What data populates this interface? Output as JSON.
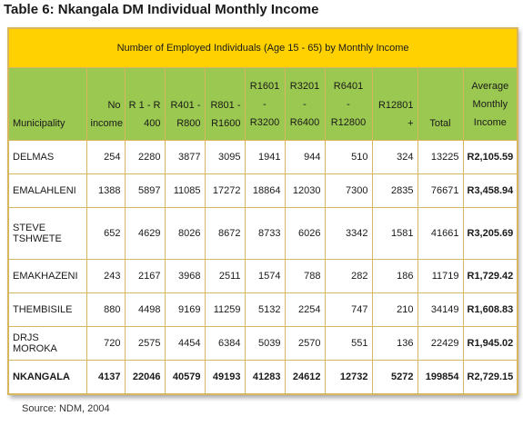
{
  "title": "Table 6: Nkangala DM Individual Monthly Income",
  "banner": "Number of Employed Individuals (Age 15 - 65) by Monthly Income",
  "headers": [
    [
      "Municipality"
    ],
    [
      "No",
      "income"
    ],
    [
      "R 1 - R",
      "400"
    ],
    [
      "R401 -",
      "R800"
    ],
    [
      "R801 -",
      "R1600"
    ],
    [
      "R1601",
      "-",
      "R3200"
    ],
    [
      "R3201",
      "-",
      "R6400"
    ],
    [
      "R6401",
      "-",
      "R12800"
    ],
    [
      "R12801",
      "+"
    ],
    [
      "Total"
    ],
    [
      "Average",
      "Monthly",
      "Income"
    ]
  ],
  "rows": [
    [
      "DELMAS",
      "254",
      "2280",
      "3877",
      "3095",
      "1941",
      "944",
      "510",
      "324",
      "13225",
      "R2,105.59"
    ],
    [
      "EMALAHLENI",
      "1388",
      "5897",
      "11085",
      "17272",
      "18864",
      "12030",
      "7300",
      "2835",
      "76671",
      "R3,458.94"
    ],
    [
      "STEVE TSHWETE",
      "652",
      "4629",
      "8026",
      "8672",
      "8733",
      "6026",
      "3342",
      "1581",
      "41661",
      "R3,205.69"
    ],
    [
      "EMAKHAZENI",
      "243",
      "2167",
      "3968",
      "2511",
      "1574",
      "788",
      "282",
      "186",
      "11719",
      "R1,729.42"
    ],
    [
      "THEMBISILE",
      "880",
      "4498",
      "9169",
      "11259",
      "5132",
      "2254",
      "747",
      "210",
      "34149",
      "R1,608.83"
    ],
    [
      "DRJS MOROKA",
      "720",
      "2575",
      "4454",
      "6384",
      "5039",
      "2570",
      "551",
      "136",
      "22429",
      "R1,945.02"
    ],
    [
      "NKANGALA",
      "4137",
      "22046",
      "40579",
      "49193",
      "41283",
      "24612",
      "12732",
      "5272",
      "199854",
      "R2,729.15"
    ]
  ],
  "source": "Source: NDM, 2004",
  "colors": {
    "banner_bg": "#ffd100",
    "header_bg": "#9bc850",
    "border": "#d6b65e"
  }
}
